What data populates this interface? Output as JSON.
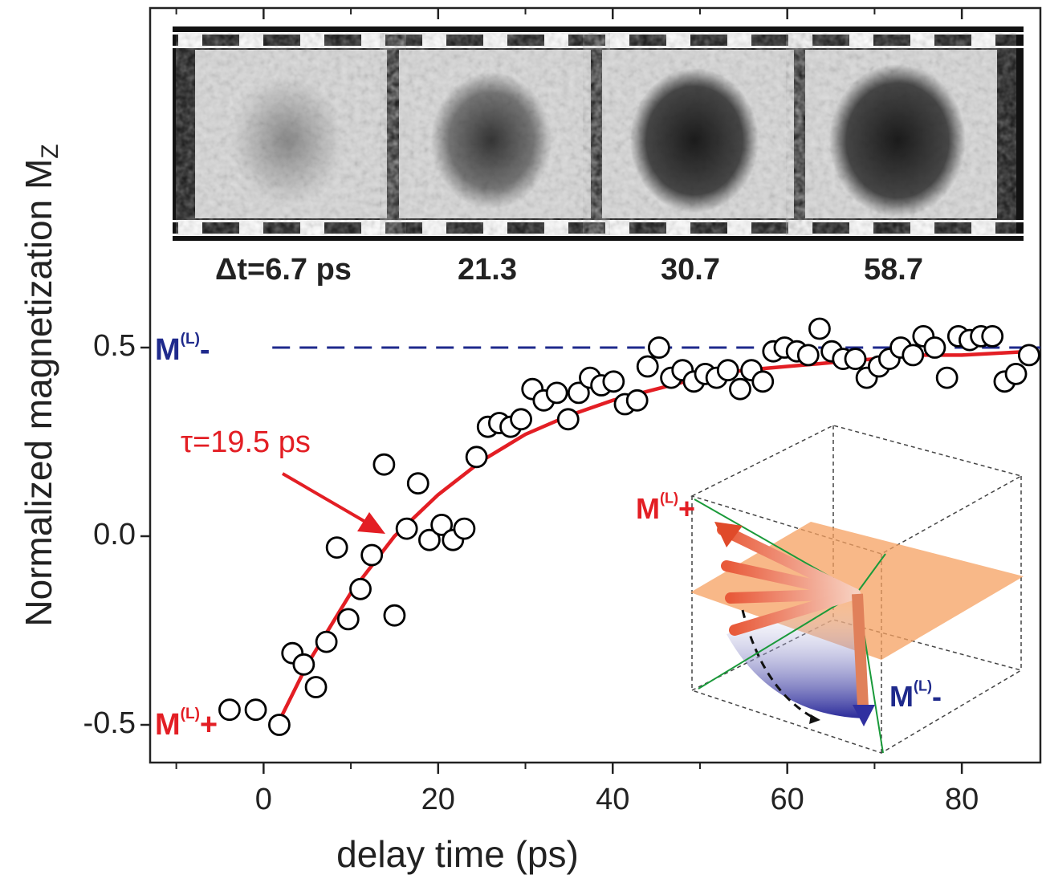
{
  "chart_data": {
    "type": "scatter",
    "x_label": "delay time (ps)",
    "y_label": "Normalized magnetization M",
    "y_label_sub": "Z",
    "xlim": [
      -13,
      89
    ],
    "ylim": [
      -0.6,
      1.4
    ],
    "xticks": [
      0,
      20,
      40,
      60,
      80
    ],
    "xminor": [
      -10,
      10,
      30,
      50,
      70
    ],
    "yticks": [
      -0.5,
      {
        "value": 0,
        "label": "0.0"
      },
      0.5
    ],
    "points": {
      "color": "#000000",
      "x": [
        -3.9,
        -0.9,
        1.8,
        3.3,
        4.6,
        6.0,
        7.2,
        8.4,
        9.7,
        11.1,
        12.4,
        13.8,
        15.0,
        16.4,
        17.7,
        19.0,
        20.4,
        21.7,
        23.0,
        24.4,
        25.7,
        27.0,
        28.3,
        29.5,
        30.8,
        32.1,
        33.6,
        34.9,
        36.1,
        37.4,
        38.7,
        40.1,
        41.4,
        42.8,
        44.0,
        45.3,
        46.7,
        48.0,
        49.3,
        50.6,
        51.9,
        53.2,
        54.6,
        55.9,
        57.2,
        58.4,
        59.7,
        61.1,
        62.4,
        63.7,
        65.1,
        66.4,
        67.8,
        69.1,
        70.5,
        71.7,
        73.0,
        74.4,
        75.6,
        76.9,
        78.3,
        79.6,
        80.9,
        82.2,
        83.5,
        84.9,
        86.2,
        87.7
      ],
      "values": [
        -0.46,
        -0.46,
        -0.5,
        -0.31,
        -0.34,
        -0.4,
        -0.28,
        -0.03,
        -0.22,
        -0.14,
        -0.05,
        0.19,
        -0.21,
        0.02,
        0.14,
        -0.01,
        0.03,
        -0.01,
        0.02,
        0.21,
        0.29,
        0.3,
        0.29,
        0.31,
        0.39,
        0.36,
        0.38,
        0.31,
        0.38,
        0.42,
        0.4,
        0.41,
        0.35,
        0.36,
        0.45,
        0.5,
        0.42,
        0.44,
        0.41,
        0.43,
        0.42,
        0.44,
        0.39,
        0.44,
        0.41,
        0.49,
        0.5,
        0.49,
        0.48,
        0.55,
        0.49,
        0.47,
        0.47,
        0.42,
        0.45,
        0.47,
        0.5,
        0.48,
        0.53,
        0.5,
        0.42,
        0.53,
        0.52,
        0.53,
        0.53,
        0.41,
        0.43,
        0.48
      ]
    },
    "fit": {
      "color": "#e31e24",
      "x": [
        2,
        5,
        10,
        15,
        20,
        25,
        30,
        35,
        40,
        45,
        50,
        55,
        60,
        65,
        70,
        75,
        80,
        88
      ],
      "values": [
        -0.48,
        -0.34,
        -0.15,
        0.0,
        0.11,
        0.2,
        0.27,
        0.32,
        0.36,
        0.39,
        0.42,
        0.44,
        0.45,
        0.46,
        0.47,
        0.48,
        0.48,
        0.49
      ]
    },
    "fit_label": "τ=19.5 ps",
    "reference_line": {
      "y": 0.5,
      "x": [
        1,
        89
      ],
      "color": "#1f2a8c"
    },
    "level_labels": [
      {
        "text": "M",
        "sup": "(L)",
        "sign": "-",
        "color": "#1f2a8c"
      },
      {
        "text": "M",
        "sup": "(L)",
        "sign": "+",
        "color": "#e31e24"
      }
    ],
    "frames": [
      "Δt=6.7 ps",
      "21.3",
      "30.7",
      "58.7"
    ],
    "inset_labels": [
      {
        "text": "M",
        "sup": "(L)",
        "sign": "+",
        "color": "#e31e24"
      },
      {
        "text": "M",
        "sup": "(L)",
        "sign": "-",
        "color": "#1f2a8c"
      }
    ]
  }
}
